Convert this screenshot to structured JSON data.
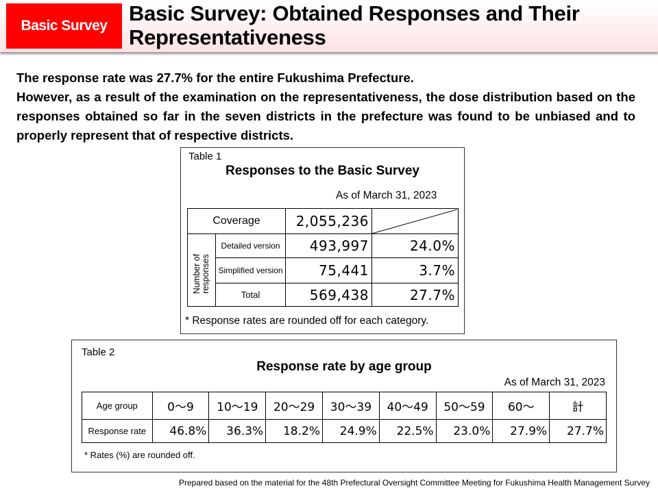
{
  "header": {
    "badge": "Basic Survey",
    "title_line1": "Basic Survey: Obtained Responses and Their",
    "title_line2": "Representativeness",
    "colors": {
      "badge": "#ff0000"
    }
  },
  "intro": {
    "line1": "The response rate was 27.7% for the entire Fukushima Prefecture.",
    "line2": "However, as a result of the examination on the representativeness, the dose distribution based on the responses obtained so far in the seven districts in the prefecture was found to be unbiased and to properly represent that of respective districts."
  },
  "table1": {
    "label": "Table 1",
    "title": "Responses to the Basic Survey",
    "as_of": "As of March 31, 2023",
    "coverage_label": "Coverage",
    "coverage_value": "2,055,236",
    "group_label": "Number of responses",
    "rows": [
      {
        "label": "Detailed version",
        "count": "493,997",
        "rate": "24.0%"
      },
      {
        "label": "Simplified version",
        "count": "75,441",
        "rate": "3.7%"
      },
      {
        "label": "Total",
        "count": "569,438",
        "rate": "27.7%"
      }
    ],
    "note": "* Response rates are rounded off for each category."
  },
  "table2": {
    "label": "Table 2",
    "title": "Response rate by age group",
    "as_of": "As of March 31, 2023",
    "header_label": "Age group",
    "rate_label": "Response rate",
    "groups": [
      "0～9",
      "10～19",
      "20～29",
      "30～39",
      "40～49",
      "50～59",
      "60～",
      "計"
    ],
    "rates": [
      "46.8%",
      "36.3%",
      "18.2%",
      "24.9%",
      "22.5%",
      "23.0%",
      "27.9%",
      "27.7%"
    ],
    "note": "* Rates (%) are rounded off."
  },
  "footer": "Prepared based on the material for the 48th Prefectural Oversight Committee Meeting for Fukushima Health Management Survey"
}
